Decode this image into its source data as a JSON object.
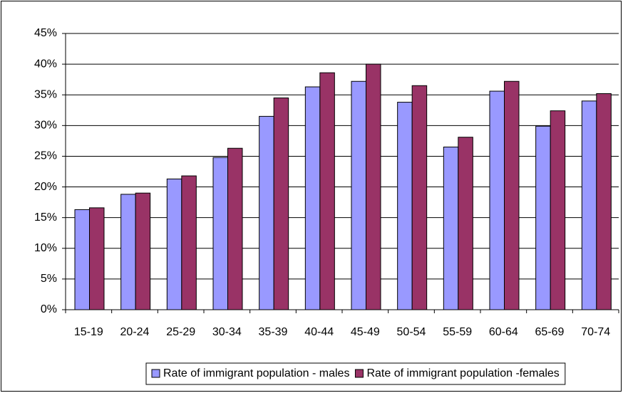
{
  "chart_data": {
    "type": "bar",
    "categories": [
      "15-19",
      "20-24",
      "25-29",
      "30-34",
      "35-39",
      "40-44",
      "45-49",
      "50-54",
      "55-59",
      "60-64",
      "65-69",
      "70-74"
    ],
    "series": [
      {
        "name": "Rate of immigrant population - males",
        "color": "#9999ff",
        "values": [
          16.3,
          18.8,
          21.3,
          24.8,
          31.5,
          36.3,
          37.2,
          33.8,
          26.5,
          35.6,
          29.9,
          34.0
        ]
      },
      {
        "name": "Rate of immigrant population -females",
        "color": "#993366",
        "values": [
          16.6,
          19.0,
          21.8,
          26.3,
          34.5,
          38.6,
          40.0,
          36.5,
          28.1,
          37.2,
          32.4,
          35.2
        ]
      }
    ],
    "ylim": [
      0,
      45
    ],
    "yticks": [
      {
        "value": 0,
        "label": "0%"
      },
      {
        "value": 5,
        "label": "5%"
      },
      {
        "value": 10,
        "label": "10%"
      },
      {
        "value": 15,
        "label": "15%"
      },
      {
        "value": 20,
        "label": "20%"
      },
      {
        "value": 25,
        "label": "25%"
      },
      {
        "value": 30,
        "label": "30%"
      },
      {
        "value": 35,
        "label": "35%"
      },
      {
        "value": 40,
        "label": "40%"
      },
      {
        "value": 45,
        "label": "45%"
      }
    ],
    "grid": true,
    "legend": "bottom"
  }
}
